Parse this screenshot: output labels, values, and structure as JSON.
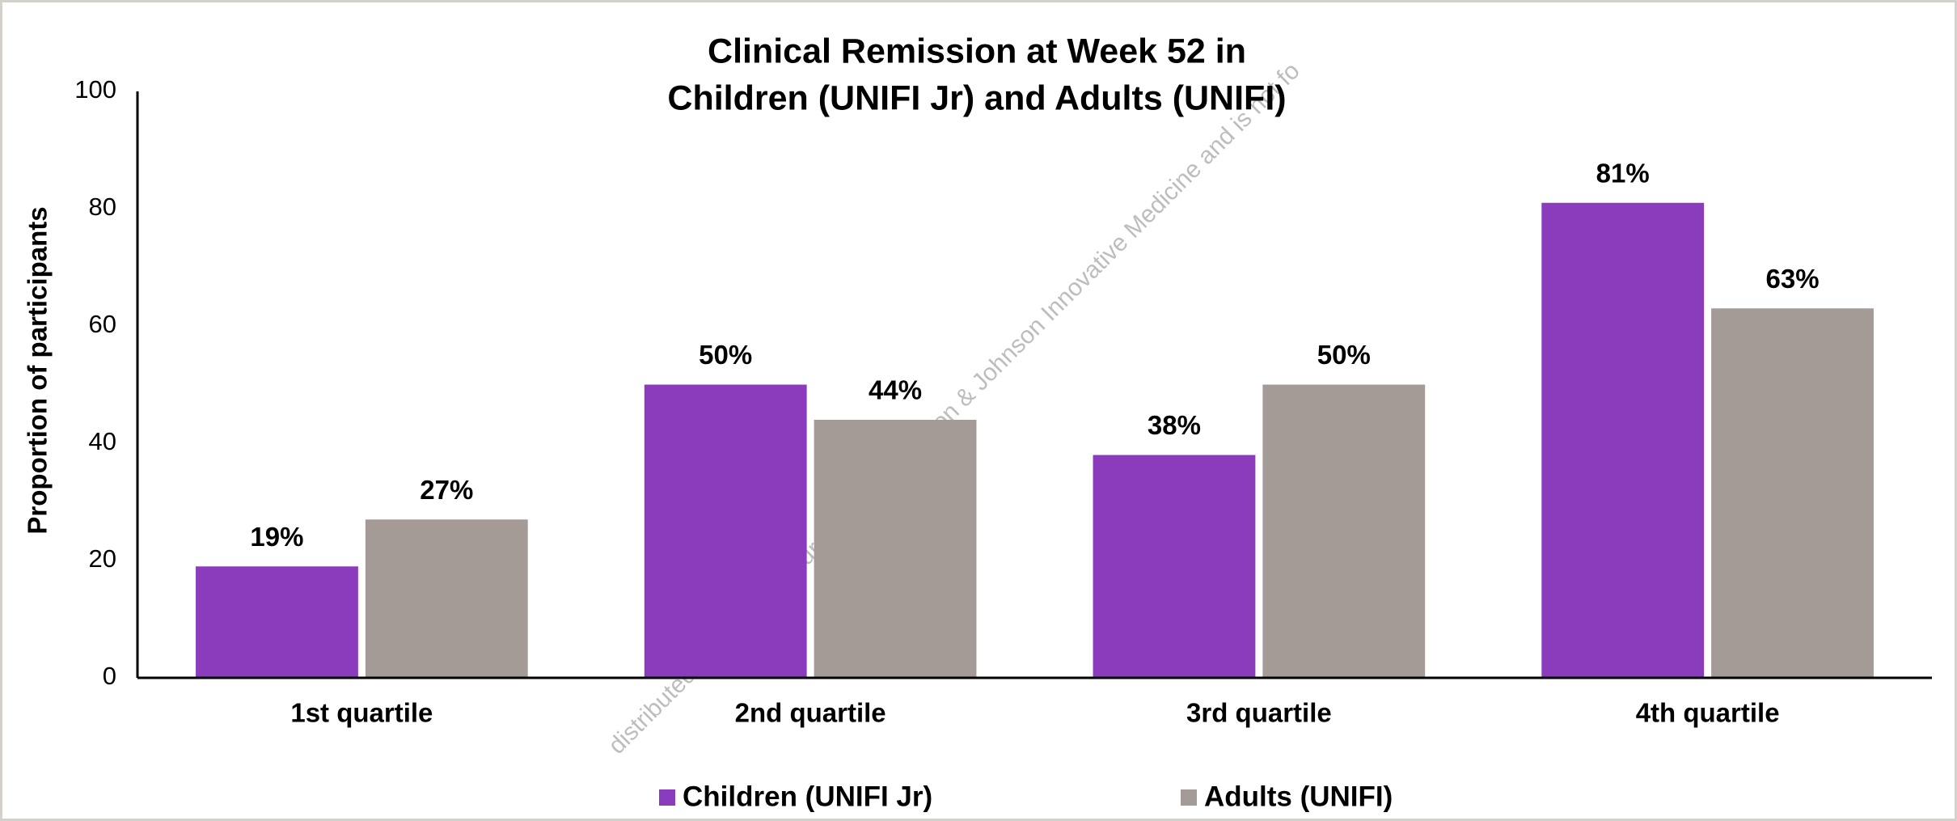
{
  "chart_data": {
    "type": "bar",
    "title": [
      "Clinical Remission at Week 52 in",
      "Children (UNIFI Jr) and Adults (UNIFI)"
    ],
    "y_label": "Proportion of participants",
    "categories": [
      "1st quartile",
      "2nd quartile",
      "3rd quartile",
      "4th quartile"
    ],
    "series": [
      {
        "name": "Children (UNIFI Jr)",
        "color": "#8b3cbd",
        "values": [
          19,
          50,
          38,
          81
        ],
        "value_labels": [
          "19%",
          "50%",
          "38%",
          "81%"
        ]
      },
      {
        "name": "Adults (UNIFI)",
        "color": "#a59b96",
        "values": [
          27,
          44,
          50,
          63
        ],
        "value_labels": [
          "27%",
          "44%",
          "50%",
          "63%"
        ]
      }
    ],
    "ylim": [
      0,
      100
    ],
    "yticks": [
      0,
      20,
      40,
      60,
      80,
      100
    ],
    "grid": false,
    "watermark": "distributed for scientific purposes by Johnson & Johnson Innovative Medicine and is not fo"
  }
}
